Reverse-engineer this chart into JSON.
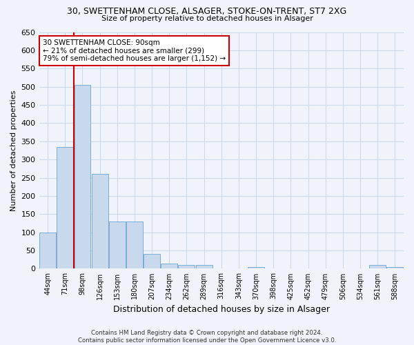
{
  "title1": "30, SWETTENHAM CLOSE, ALSAGER, STOKE-ON-TRENT, ST7 2XG",
  "title2": "Size of property relative to detached houses in Alsager",
  "xlabel": "Distribution of detached houses by size in Alsager",
  "ylabel": "Number of detached properties",
  "categories": [
    "44sqm",
    "71sqm",
    "98sqm",
    "126sqm",
    "153sqm",
    "180sqm",
    "207sqm",
    "234sqm",
    "262sqm",
    "289sqm",
    "316sqm",
    "343sqm",
    "370sqm",
    "398sqm",
    "425sqm",
    "452sqm",
    "479sqm",
    "506sqm",
    "534sqm",
    "561sqm",
    "588sqm"
  ],
  "values": [
    100,
    335,
    505,
    260,
    130,
    130,
    40,
    15,
    10,
    10,
    0,
    0,
    5,
    0,
    0,
    0,
    0,
    0,
    0,
    10,
    5
  ],
  "bar_color": "#c8d9ee",
  "bar_edge_color": "#7aadd4",
  "red_line_x": 1.5,
  "annotation_text": "30 SWETTENHAM CLOSE: 90sqm\n← 21% of detached houses are smaller (299)\n79% of semi-detached houses are larger (1,152) →",
  "annotation_box_color": "#ffffff",
  "annotation_box_edge_color": "#cc0000",
  "red_line_color": "#cc0000",
  "grid_color": "#cdd8e8",
  "bg_color": "#f0f4fa",
  "plot_bg_color": "#f0f4fa",
  "ylim": [
    0,
    650
  ],
  "yticks": [
    0,
    50,
    100,
    150,
    200,
    250,
    300,
    350,
    400,
    450,
    500,
    550,
    600,
    650
  ],
  "footer1": "Contains HM Land Registry data © Crown copyright and database right 2024.",
  "footer2": "Contains public sector information licensed under the Open Government Licence v3.0."
}
